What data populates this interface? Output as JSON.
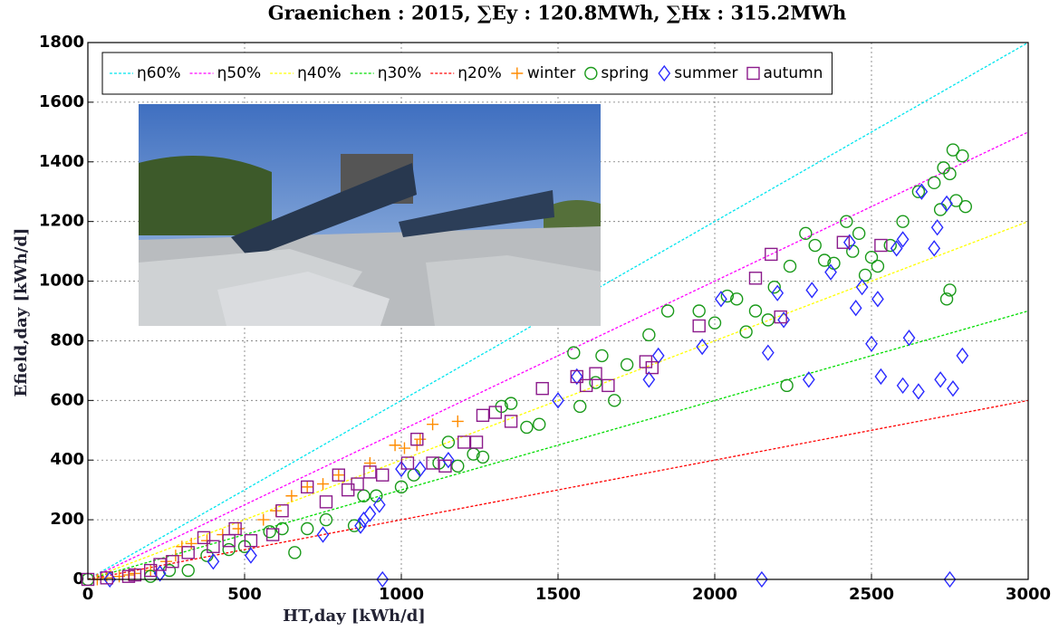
{
  "chart_data": {
    "type": "scatter",
    "title": "Graenichen : 2015,  ∑Ey : 120.8MWh,  ∑Hx : 315.2MWh",
    "xlabel": "HT,day [kWh/d]",
    "ylabel": "Efield,day [kWh/d]",
    "xlim": [
      0,
      3000
    ],
    "ylim": [
      0,
      1800
    ],
    "xticks": [
      0,
      500,
      1000,
      1500,
      2000,
      2500,
      3000
    ],
    "yticks": [
      0,
      200,
      400,
      600,
      800,
      1000,
      1200,
      1400,
      1600,
      1800
    ],
    "grid": true,
    "legend": "top-left",
    "series": [
      {
        "name": "η60%",
        "type": "line",
        "color": "#00e5ee",
        "x": [
          0,
          3000
        ],
        "values": [
          0,
          1800
        ]
      },
      {
        "name": "η50%",
        "type": "line",
        "color": "#ff00ff",
        "x": [
          0,
          3000
        ],
        "values": [
          0,
          1500
        ]
      },
      {
        "name": "η40%",
        "type": "line",
        "color": "#ffff00",
        "x": [
          0,
          3000
        ],
        "values": [
          0,
          1200
        ]
      },
      {
        "name": "η30%",
        "type": "line",
        "color": "#00dd00",
        "x": [
          0,
          3000
        ],
        "values": [
          0,
          900
        ]
      },
      {
        "name": "η20%",
        "type": "line",
        "color": "#ff0000",
        "x": [
          0,
          3000
        ],
        "values": [
          0,
          600
        ]
      },
      {
        "name": "winter",
        "type": "scatter",
        "marker": "plus",
        "color": "#ff8c00",
        "x": [
          30,
          60,
          100,
          130,
          150,
          200,
          250,
          280,
          300,
          330,
          380,
          430,
          480,
          560,
          600,
          650,
          700,
          750,
          800,
          900,
          980,
          1010,
          1050,
          1060,
          1100,
          1180
        ],
        "values": [
          0,
          5,
          10,
          15,
          20,
          30,
          60,
          80,
          110,
          120,
          130,
          150,
          170,
          200,
          230,
          280,
          310,
          320,
          350,
          390,
          450,
          440,
          450,
          470,
          520,
          530
        ]
      },
      {
        "name": "spring",
        "type": "scatter",
        "marker": "circle",
        "color": "#1a9a1a",
        "x": [
          0,
          200,
          260,
          320,
          380,
          450,
          500,
          580,
          620,
          660,
          700,
          760,
          850,
          880,
          920,
          1000,
          1040,
          1120,
          1150,
          1180,
          1230,
          1260,
          1320,
          1350,
          1400,
          1440,
          1550,
          1570,
          1620,
          1640,
          1680,
          1720,
          1790,
          1850,
          1950,
          2000,
          2040,
          2070,
          2100,
          2130,
          2170,
          2190,
          2230,
          2240,
          2290,
          2320,
          2350,
          2380,
          2420,
          2440,
          2460,
          2480,
          2500,
          2520,
          2560,
          2600,
          2650,
          2700,
          2720,
          2730,
          2740,
          2750,
          2750,
          2760,
          2770,
          2790,
          2800
        ],
        "values": [
          0,
          10,
          30,
          30,
          80,
          100,
          110,
          160,
          170,
          90,
          170,
          200,
          180,
          280,
          280,
          310,
          350,
          390,
          460,
          380,
          420,
          410,
          580,
          590,
          510,
          520,
          760,
          580,
          660,
          750,
          600,
          720,
          820,
          900,
          900,
          860,
          950,
          940,
          830,
          900,
          870,
          980,
          650,
          1050,
          1160,
          1120,
          1070,
          1060,
          1200,
          1100,
          1160,
          1020,
          1080,
          1050,
          1120,
          1200,
          1300,
          1330,
          1240,
          1380,
          940,
          1360,
          970,
          1440,
          1270,
          1420,
          1250
        ]
      },
      {
        "name": "summer",
        "type": "scatter",
        "marker": "diamond",
        "color": "#2a2aff",
        "x": [
          70,
          230,
          400,
          520,
          750,
          870,
          880,
          900,
          930,
          940,
          1000,
          1060,
          1150,
          1500,
          1560,
          1790,
          1820,
          1960,
          2020,
          2150,
          2170,
          2200,
          2220,
          2300,
          2310,
          2370,
          2430,
          2450,
          2470,
          2500,
          2520,
          2530,
          2580,
          2600,
          2600,
          2620,
          2650,
          2660,
          2700,
          2710,
          2720,
          2740,
          2750,
          2760,
          2790
        ],
        "values": [
          0,
          20,
          60,
          80,
          150,
          180,
          200,
          220,
          250,
          0,
          370,
          370,
          400,
          600,
          680,
          670,
          750,
          780,
          940,
          0,
          760,
          960,
          870,
          670,
          970,
          1030,
          1130,
          910,
          980,
          790,
          940,
          680,
          1110,
          650,
          1140,
          810,
          630,
          1300,
          1110,
          1180,
          670,
          1260,
          0,
          640,
          750
        ]
      },
      {
        "name": "autumn",
        "type": "scatter",
        "marker": "square",
        "color": "#8b1a8b",
        "x": [
          0,
          60,
          130,
          150,
          200,
          230,
          270,
          320,
          370,
          400,
          450,
          470,
          520,
          590,
          620,
          700,
          760,
          800,
          830,
          860,
          900,
          940,
          1020,
          1050,
          1100,
          1140,
          1200,
          1240,
          1260,
          1300,
          1350,
          1450,
          1560,
          1590,
          1620,
          1660,
          1780,
          1800,
          1950,
          2130,
          2180,
          2210,
          2410,
          2530
        ],
        "values": [
          0,
          5,
          10,
          15,
          30,
          50,
          60,
          90,
          140,
          110,
          130,
          170,
          130,
          150,
          230,
          310,
          260,
          350,
          300,
          320,
          360,
          350,
          390,
          470,
          390,
          380,
          460,
          460,
          550,
          560,
          530,
          640,
          680,
          650,
          690,
          650,
          730,
          710,
          850,
          1010,
          1090,
          880,
          1130,
          1120
        ]
      }
    ]
  }
}
